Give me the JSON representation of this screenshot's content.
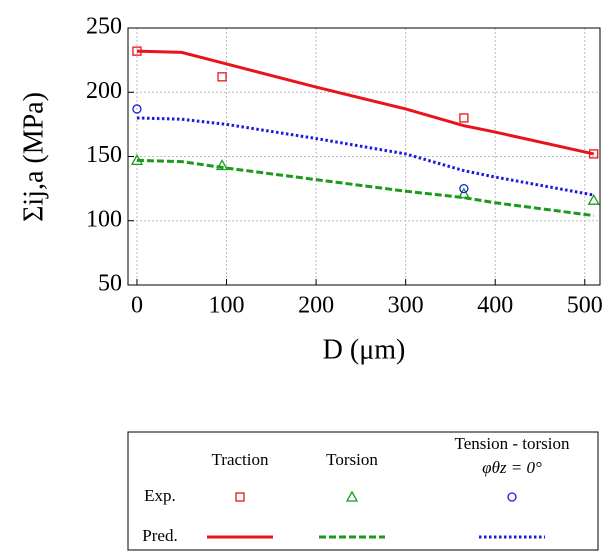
{
  "chart_data": {
    "type": "line",
    "xlabel": "D (μm)",
    "ylabel": "Σij,a (MPa)",
    "xlim": [
      -10,
      517
    ],
    "ylim": [
      50,
      250
    ],
    "xticks": [
      0,
      100,
      200,
      300,
      400,
      500
    ],
    "yticks": [
      50,
      100,
      150,
      200,
      250
    ],
    "grid": true,
    "legend_rows": [
      "Exp.",
      "Pred."
    ],
    "series": [
      {
        "name": "Traction",
        "color": "#e8141b",
        "marker": "square",
        "dash": "solid",
        "experimental": {
          "x": [
            0,
            95,
            365,
            510
          ],
          "values": [
            232,
            212,
            180,
            152
          ]
        },
        "predicted": {
          "x": [
            0,
            50,
            100,
            200,
            300,
            365,
            400,
            510
          ],
          "values": [
            232,
            231,
            222,
            204,
            187,
            174,
            169,
            152
          ]
        }
      },
      {
        "name": "Torsion",
        "color": "#1c9a1c",
        "marker": "triangle",
        "dash": "dashed",
        "experimental": {
          "x": [
            0,
            95,
            365,
            510
          ],
          "values": [
            147,
            143,
            121,
            116
          ]
        },
        "predicted": {
          "x": [
            0,
            50,
            100,
            200,
            300,
            365,
            400,
            510
          ],
          "values": [
            147,
            146,
            141,
            132,
            123,
            118,
            114,
            104
          ]
        }
      },
      {
        "name": "Tension - torsion",
        "condition": "φθz = 0°",
        "color": "#1a1ae0",
        "marker": "circle",
        "dash": "dotted",
        "experimental": {
          "x": [
            0,
            365
          ],
          "values": [
            187,
            125
          ]
        },
        "predicted": {
          "x": [
            0,
            50,
            100,
            200,
            300,
            365,
            400,
            510
          ],
          "values": [
            180,
            179,
            175,
            164,
            152,
            139,
            134,
            120
          ]
        }
      }
    ]
  }
}
